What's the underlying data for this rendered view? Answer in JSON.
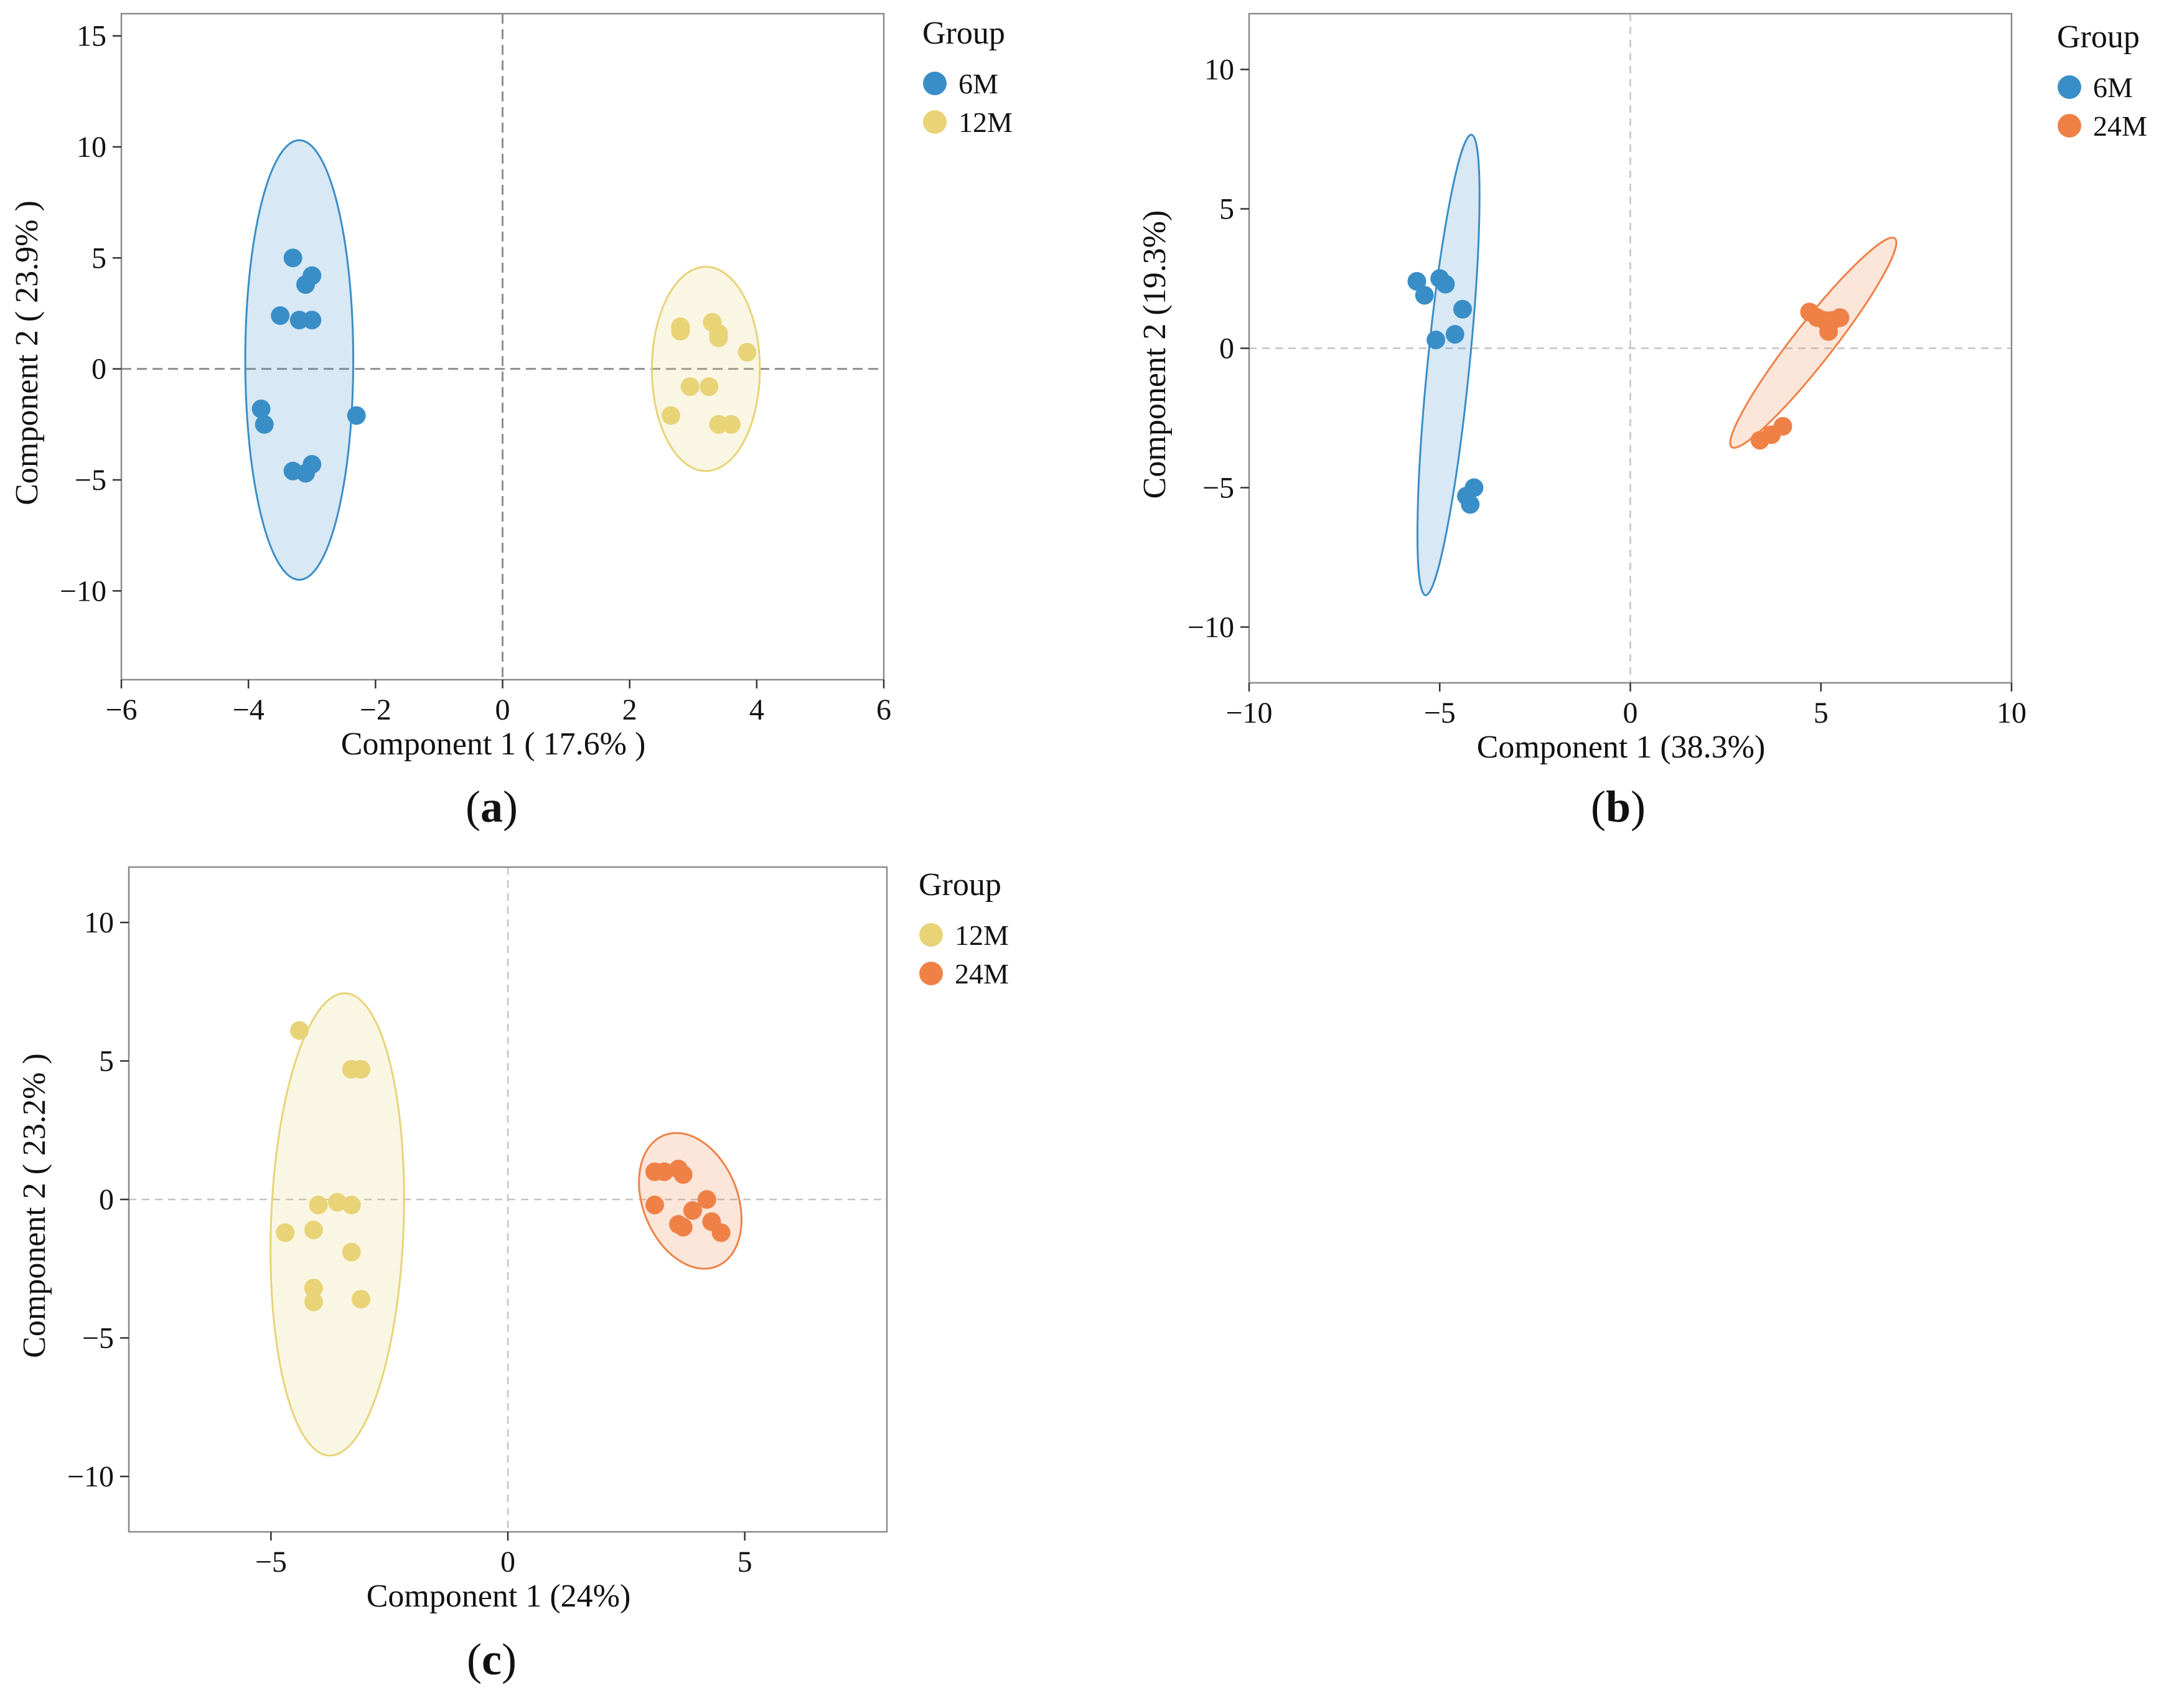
{
  "colors": {
    "6M": "#3a8ec7",
    "12M": "#e8d377",
    "24M": "#ef8147",
    "frame": "#8a8a8a",
    "refline": "#b5b5b5"
  },
  "chart_data": [
    {
      "type": "scatter",
      "panel": "(a)",
      "panel_letter": "a",
      "xlabel": "Component  1  (  17.6%  )",
      "ylabel": "Component  2  (  23.9%  )",
      "xlim": [
        -6,
        6
      ],
      "ylim": [
        -14,
        16
      ],
      "xticks": [
        -6,
        -4,
        -2,
        0,
        2,
        4,
        6
      ],
      "yticks": [
        -10,
        -5,
        0,
        5,
        10,
        15
      ],
      "ref_line_style": "dashed-dark",
      "legend": {
        "title": "Group",
        "entries": [
          "6M",
          "12M"
        ]
      },
      "series": [
        {
          "name": "6M",
          "color": "#3a8ec7",
          "points": [
            [
              -3.3,
              5.0
            ],
            [
              -3.0,
              4.2
            ],
            [
              -3.1,
              3.8
            ],
            [
              -3.5,
              2.4
            ],
            [
              -3.2,
              2.2
            ],
            [
              -3.0,
              2.2
            ],
            [
              -3.8,
              -1.8
            ],
            [
              -3.75,
              -2.5
            ],
            [
              -2.3,
              -2.1
            ],
            [
              -3.3,
              -4.6
            ],
            [
              -3.1,
              -4.7
            ],
            [
              -3.0,
              -4.3
            ]
          ],
          "ellipse": {
            "cx": -3.2,
            "cy": 0.4,
            "rx": 0.85,
            "ry": 9.9,
            "angle": 0
          }
        },
        {
          "name": "12M",
          "color": "#e8d377",
          "points": [
            [
              2.8,
              1.9
            ],
            [
              2.8,
              1.7
            ],
            [
              3.3,
              2.1
            ],
            [
              3.4,
              1.6
            ],
            [
              3.4,
              1.4
            ],
            [
              3.85,
              0.75
            ],
            [
              2.95,
              -0.8
            ],
            [
              3.25,
              -0.8
            ],
            [
              2.65,
              -2.1
            ],
            [
              3.4,
              -2.5
            ],
            [
              3.6,
              -2.5
            ]
          ],
          "ellipse": {
            "cx": 3.2,
            "cy": 0.0,
            "rx": 0.85,
            "ry": 4.6,
            "angle": 0
          }
        }
      ]
    },
    {
      "type": "scatter",
      "panel": "(b)",
      "panel_letter": "b",
      "xlabel": "Component 1 (38.3%)",
      "ylabel": "Component 2 (19.3%)",
      "xlim": [
        -10,
        10
      ],
      "ylim": [
        -12,
        12
      ],
      "xticks": [
        -10,
        -5,
        0,
        5,
        10
      ],
      "yticks": [
        -10,
        -5,
        0,
        5,
        10
      ],
      "ref_line_style": "dashed-light",
      "legend": {
        "title": "Group",
        "entries": [
          "6M",
          "24M"
        ]
      },
      "series": [
        {
          "name": "6M",
          "color": "#3a8ec7",
          "points": [
            [
              -5.6,
              2.4
            ],
            [
              -5.4,
              1.9
            ],
            [
              -5.0,
              2.5
            ],
            [
              -4.85,
              2.3
            ],
            [
              -4.4,
              1.4
            ],
            [
              -4.6,
              0.5
            ],
            [
              -5.1,
              0.3
            ],
            [
              -4.3,
              -5.3
            ],
            [
              -4.2,
              -5.6
            ],
            [
              -4.1,
              -5.0
            ]
          ],
          "ellipse": {
            "cx": -4.77,
            "cy": -0.6,
            "rx": 0.55,
            "ry": 8.3,
            "angle": 5.7
          }
        },
        {
          "name": "24M",
          "color": "#ef8147",
          "points": [
            [
              4.7,
              1.3
            ],
            [
              4.9,
              1.1
            ],
            [
              5.1,
              1.0
            ],
            [
              5.3,
              1.0
            ],
            [
              5.5,
              1.1
            ],
            [
              5.2,
              0.6
            ],
            [
              4.0,
              -2.8
            ],
            [
              3.7,
              -3.1
            ],
            [
              3.4,
              -3.3
            ]
          ],
          "ellipse": {
            "cx": 4.8,
            "cy": 0.2,
            "rx": 0.52,
            "ry": 4.75,
            "angle": 38
          }
        }
      ]
    },
    {
      "type": "scatter",
      "panel": "(c)",
      "panel_letter": "c",
      "xlabel": "Component 1 (24%)",
      "ylabel": "Component  2  (  23.2%  )",
      "xlim": [
        -8,
        8
      ],
      "ylim": [
        -12,
        12
      ],
      "xticks": [
        -5,
        0,
        5
      ],
      "yticks": [
        -10,
        -5,
        0,
        5,
        10
      ],
      "ref_line_style": "dashed-light",
      "legend": {
        "title": "Group",
        "entries": [
          "12M",
          "24M"
        ]
      },
      "series": [
        {
          "name": "12M",
          "color": "#e8d377",
          "points": [
            [
              -4.4,
              6.1
            ],
            [
              -3.3,
              4.7
            ],
            [
              -3.1,
              4.7
            ],
            [
              -4.0,
              -0.2
            ],
            [
              -3.6,
              -0.1
            ],
            [
              -3.3,
              -0.2
            ],
            [
              -4.7,
              -1.2
            ],
            [
              -4.1,
              -1.1
            ],
            [
              -3.3,
              -1.9
            ],
            [
              -4.1,
              -3.2
            ],
            [
              -4.1,
              -3.7
            ],
            [
              -3.1,
              -3.6
            ]
          ],
          "ellipse": {
            "cx": -3.6,
            "cy": -0.9,
            "rx": 1.4,
            "ry": 8.35,
            "angle": 2
          }
        },
        {
          "name": "24M",
          "color": "#ef8147",
          "points": [
            [
              3.1,
              1.0
            ],
            [
              3.3,
              1.0
            ],
            [
              3.6,
              1.1
            ],
            [
              3.7,
              0.9
            ],
            [
              3.1,
              -0.2
            ],
            [
              3.9,
              -0.4
            ],
            [
              4.2,
              0.0
            ],
            [
              3.6,
              -0.9
            ],
            [
              3.7,
              -1.0
            ],
            [
              4.3,
              -0.8
            ],
            [
              4.5,
              -1.2
            ]
          ],
          "ellipse": {
            "cx": 3.85,
            "cy": -0.05,
            "rx": 1.0,
            "ry": 2.55,
            "angle": -22
          }
        }
      ]
    }
  ]
}
